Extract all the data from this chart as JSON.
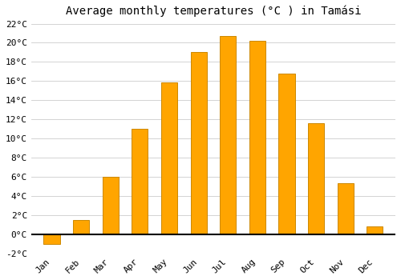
{
  "title": "Average monthly temperatures (°C ) in Tamási",
  "months": [
    "Jan",
    "Feb",
    "Mar",
    "Apr",
    "May",
    "Jun",
    "Jul",
    "Aug",
    "Sep",
    "Oct",
    "Nov",
    "Dec"
  ],
  "values": [
    -1.0,
    1.5,
    6.0,
    11.0,
    15.9,
    19.0,
    20.7,
    20.2,
    16.8,
    11.6,
    5.3,
    0.8
  ],
  "bar_color": "#FFA500",
  "bar_edge_color": "#CC8800",
  "ylim": [
    -2,
    22
  ],
  "yticks": [
    -2,
    0,
    2,
    4,
    6,
    8,
    10,
    12,
    14,
    16,
    18,
    20,
    22
  ],
  "background_color": "#ffffff",
  "grid_color": "#cccccc",
  "title_fontsize": 10,
  "tick_fontsize": 8,
  "font_family": "monospace",
  "bar_width": 0.55
}
